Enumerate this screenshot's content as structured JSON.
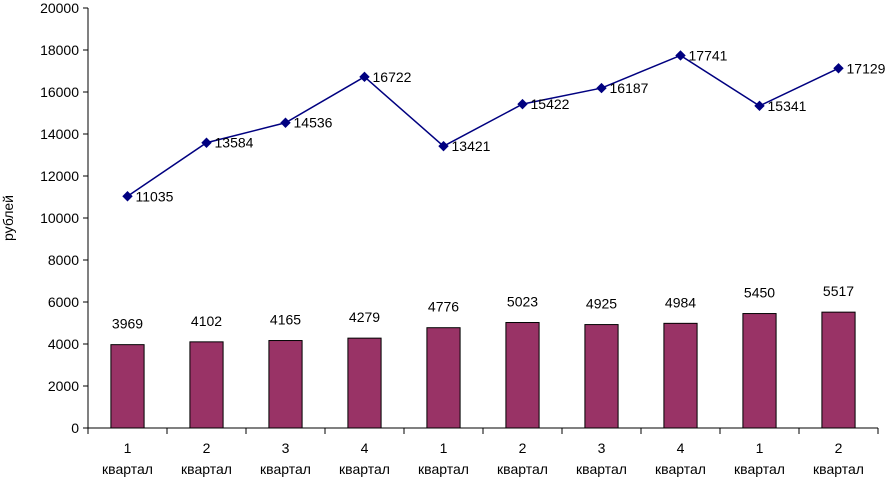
{
  "chart_data": {
    "type": "bar",
    "categories": [
      [
        "1",
        "квартал"
      ],
      [
        "2",
        "квартал"
      ],
      [
        "3",
        "квартал"
      ],
      [
        "4",
        "квартал"
      ],
      [
        "1",
        "квартал"
      ],
      [
        "2",
        "квартал"
      ],
      [
        "3",
        "квартал"
      ],
      [
        "4",
        "квартал"
      ],
      [
        "1",
        "квартал"
      ],
      [
        "2",
        "квартал"
      ]
    ],
    "series": [
      {
        "kind": "bar",
        "values": [
          3969,
          4102,
          4165,
          4279,
          4776,
          5023,
          4925,
          4984,
          5450,
          5517
        ],
        "color": "#993366"
      },
      {
        "kind": "line",
        "values": [
          11035,
          13584,
          14536,
          16722,
          13421,
          15422,
          16187,
          17741,
          15341,
          17129
        ],
        "color": "#000080",
        "marker": "diamond"
      }
    ],
    "ylabel": "рублей",
    "ylim": [
      0,
      20000
    ],
    "yticks": [
      0,
      2000,
      4000,
      6000,
      8000,
      10000,
      12000,
      14000,
      16000,
      18000,
      20000
    ],
    "grid": false,
    "legend": "none"
  }
}
